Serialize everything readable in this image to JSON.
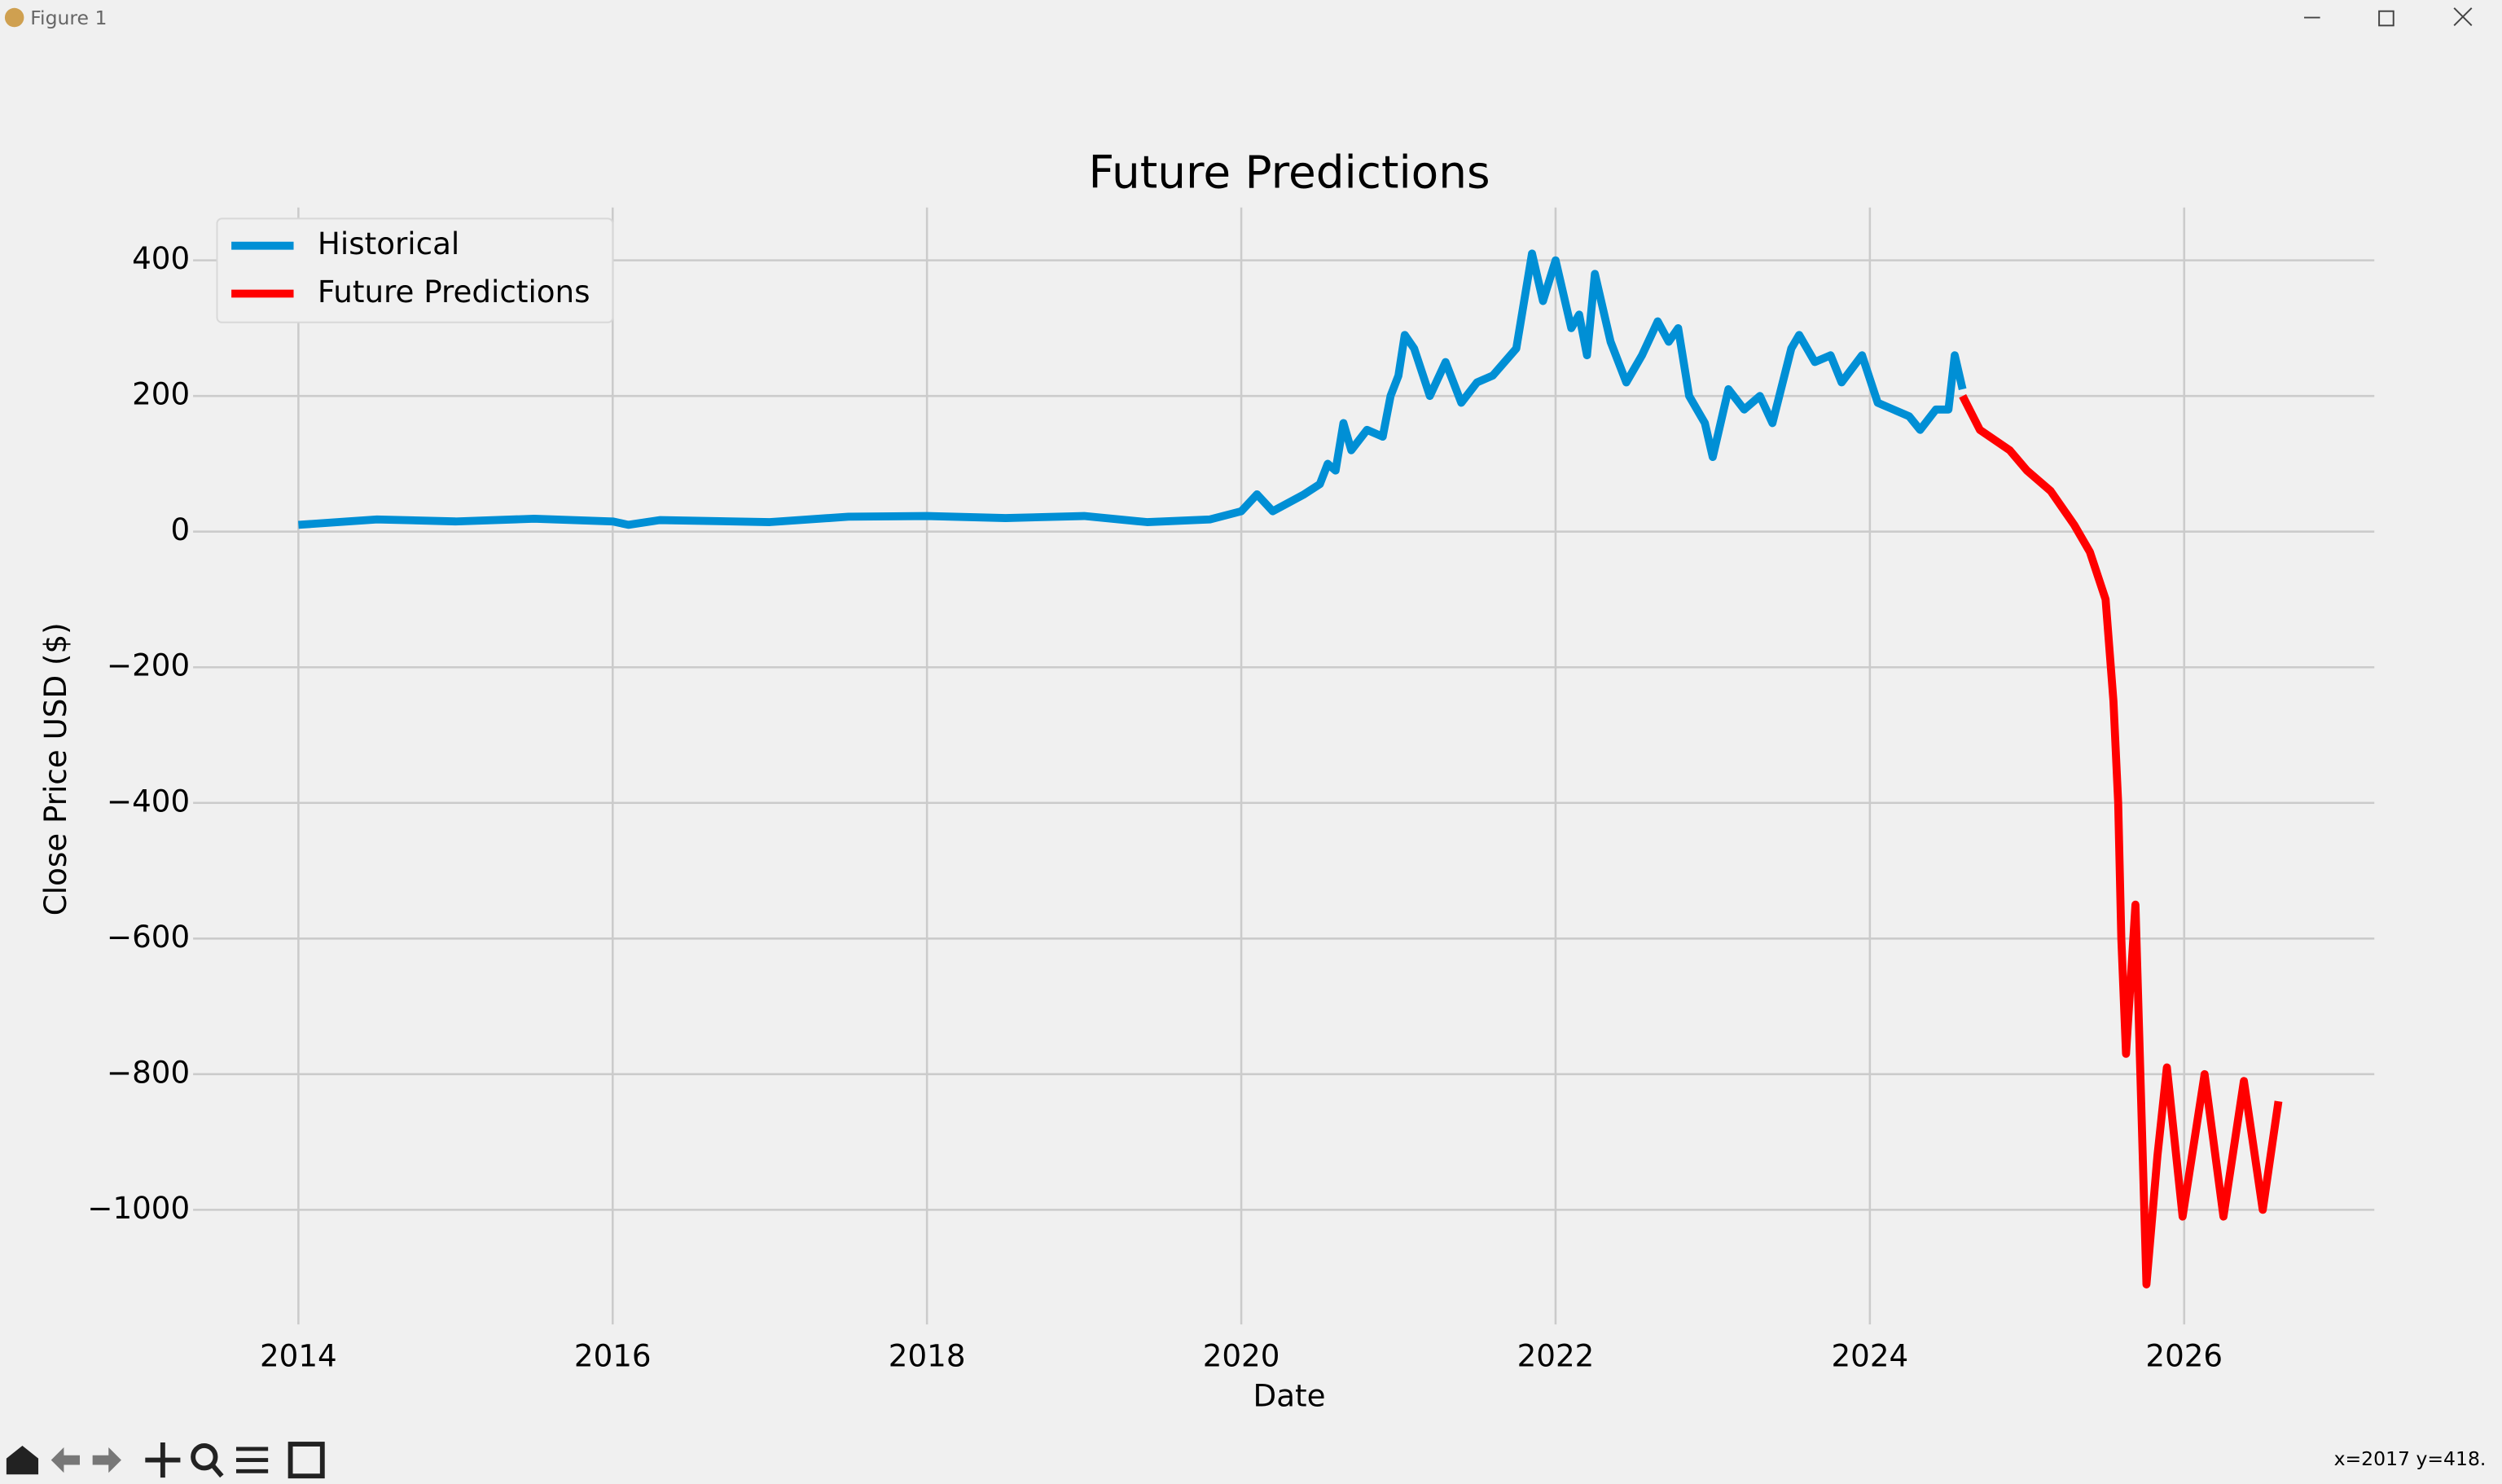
{
  "window": {
    "title": "Figure 1",
    "status": "x=2017 y=418."
  },
  "chart_data": {
    "type": "line",
    "title": "Future Predictions",
    "x_label": "Date",
    "y_label": "Close Price USD ($)",
    "series": [
      {
        "name": "Historical",
        "color": "#008fd5",
        "x": [
          2014.0,
          2014.5,
          2015.0,
          2015.5,
          2016.0,
          2016.1,
          2016.3,
          2017.0,
          2017.5,
          2018.0,
          2018.5,
          2019.0,
          2019.4,
          2019.8,
          2020.0,
          2020.1,
          2020.2,
          2020.4,
          2020.5,
          2020.55,
          2020.6,
          2020.65,
          2020.7,
          2020.8,
          2020.9,
          2020.95,
          2021.0,
          2021.04,
          2021.1,
          2021.2,
          2021.3,
          2021.4,
          2021.5,
          2021.6,
          2021.75,
          2021.85,
          2021.92,
          2022.0,
          2022.1,
          2022.15,
          2022.2,
          2022.25,
          2022.35,
          2022.45,
          2022.55,
          2022.65,
          2022.72,
          2022.78,
          2022.85,
          2022.95,
          2023.0,
          2023.1,
          2023.2,
          2023.3,
          2023.38,
          2023.5,
          2023.55,
          2023.65,
          2023.75,
          2023.82,
          2023.95,
          2024.05,
          2024.15,
          2024.25,
          2024.32,
          2024.42,
          2024.5,
          2024.54,
          2024.59
        ],
        "values": [
          10,
          18,
          15,
          19,
          15,
          10,
          17,
          14,
          22,
          23,
          20,
          23,
          14,
          18,
          30,
          55,
          30,
          55,
          70,
          100,
          90,
          160,
          120,
          150,
          140,
          200,
          230,
          290,
          270,
          200,
          250,
          190,
          220,
          230,
          270,
          410,
          340,
          400,
          300,
          320,
          260,
          380,
          280,
          220,
          260,
          310,
          280,
          300,
          200,
          160,
          110,
          210,
          180,
          200,
          160,
          270,
          290,
          250,
          260,
          220,
          260,
          190,
          180,
          170,
          150,
          180,
          180,
          260,
          210
        ]
      },
      {
        "name": "Future Predictions",
        "color": "#ff0000",
        "x": [
          2024.59,
          2024.7,
          2024.89,
          2025.0,
          2025.15,
          2025.3,
          2025.4,
          2025.5,
          2025.55,
          2025.58,
          2025.6,
          2025.63,
          2025.69,
          2025.76,
          2025.83,
          2025.89,
          2025.99,
          2026.13,
          2026.25,
          2026.38,
          2026.5,
          2026.6
        ],
        "values": [
          200,
          150,
          120,
          90,
          60,
          10,
          -30,
          -100,
          -250,
          -400,
          -600,
          -770,
          -550,
          -1110,
          -920,
          -790,
          -1010,
          -800,
          -1010,
          -810,
          -1000,
          -840
        ]
      }
    ],
    "xlim": [
      2013.33,
      2027.21
    ],
    "ylim": [
      -1169,
      478
    ],
    "xticks": [
      2014,
      2016,
      2018,
      2020,
      2022,
      2024,
      2026
    ],
    "yticks": [
      {
        "value": -1000,
        "label": "−1000"
      },
      {
        "value": -800,
        "label": "−800"
      },
      {
        "value": -600,
        "label": "−600"
      },
      {
        "value": -400,
        "label": "−400"
      },
      {
        "value": -200,
        "label": "−200"
      },
      0,
      200,
      400
    ],
    "grid": true,
    "legend": "upper left"
  }
}
